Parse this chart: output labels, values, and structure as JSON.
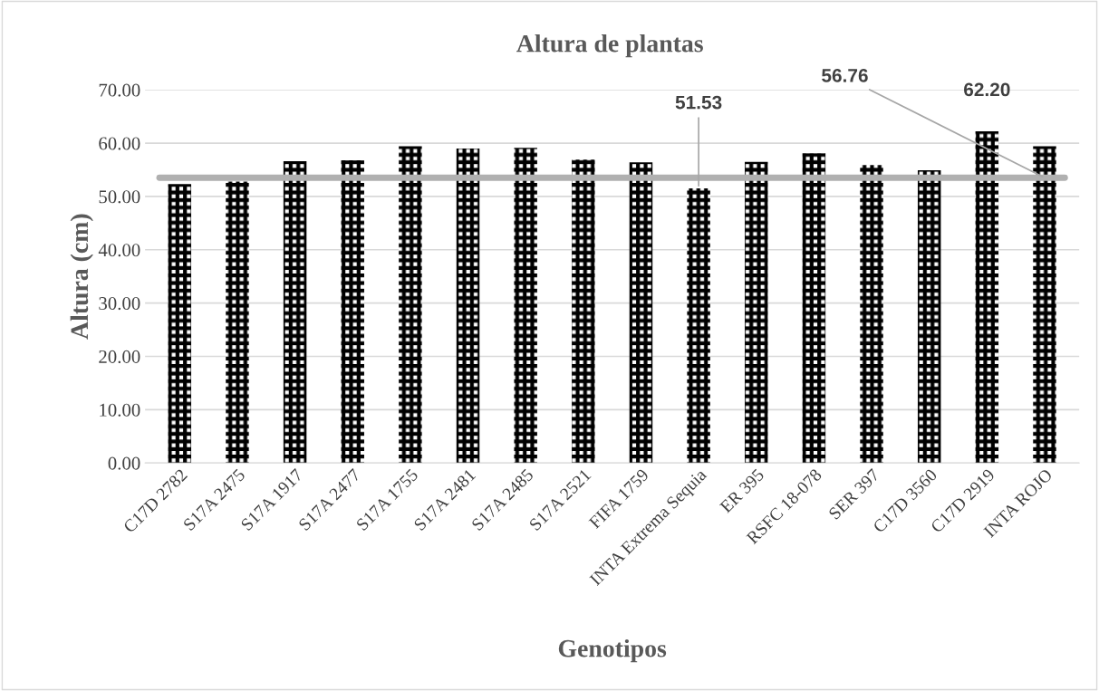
{
  "chart_data": {
    "type": "bar",
    "title": "Altura de plantas",
    "xlabel": "Genotipos",
    "ylabel": "Altura (cm)",
    "categories": [
      "C17D 2782",
      "S17A 2475",
      "S17A 1917",
      "S17A 2477",
      "S17A 1755",
      "S17A 2481",
      "S17A 2485",
      "S17A 2521",
      "FIFA 1759",
      "INTA Extrema Sequia",
      "ER 395",
      "RSFC 18-078",
      "SER 397",
      "C17D 3560",
      "C17D 2919",
      "INTA ROJO"
    ],
    "series": [
      {
        "color": "#000000",
        "values": [
          52.3,
          52.8,
          56.6,
          56.8,
          59.4,
          59.0,
          59.1,
          56.9,
          56.4,
          51.53,
          56.5,
          58.1,
          55.9,
          54.9,
          62.2,
          59.4
        ]
      }
    ],
    "ylim": [
      0,
      70
    ],
    "yticks": [
      {
        "value": 0,
        "label": "0.00"
      },
      {
        "value": 10,
        "label": "10.00"
      },
      {
        "value": 20,
        "label": "20.00"
      },
      {
        "value": 30,
        "label": "30.00"
      },
      {
        "value": 40,
        "label": "40.00"
      },
      {
        "value": 50,
        "label": "50.00"
      },
      {
        "value": 60,
        "label": "60.00"
      },
      {
        "value": 70,
        "label": "70.00"
      }
    ],
    "ref_lines": [
      {
        "axis": "y",
        "value": 53.5,
        "color": "#b0b0b0"
      }
    ],
    "annotations": [
      {
        "text": "51.53",
        "x": "INTA Extrema Sequia",
        "y": 51.53
      },
      {
        "text": "56.76",
        "x": "INTA ROJO",
        "y": 53.5
      },
      {
        "text": "62.20",
        "x": "C17D 2919",
        "y": 62.2
      }
    ],
    "grid": "y",
    "legend": false
  }
}
